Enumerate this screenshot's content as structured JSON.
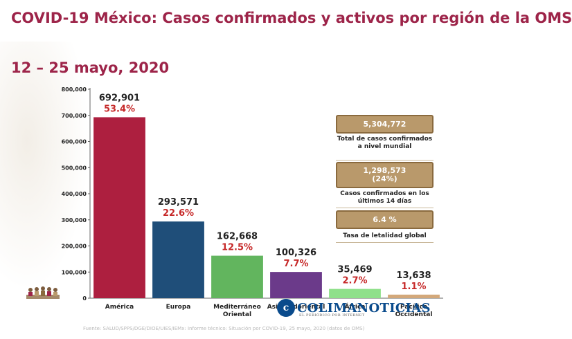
{
  "header": {
    "title": "COVID-19 México: Casos confirmados y activos por región de la OMS",
    "subtitle": "12 – 25 mayo, 2020"
  },
  "chart_data": {
    "type": "bar",
    "categories": [
      "América",
      "Europa",
      "Mediterráneo Oriental",
      "Asia Sudoriental",
      "África",
      "Pacífico Occidental"
    ],
    "category_lines": [
      [
        "América"
      ],
      [
        "Europa"
      ],
      [
        "Mediterráneo",
        "Oriental"
      ],
      [
        "Asia Sudoriental"
      ],
      [
        "África"
      ],
      [
        "Pacífico",
        "Occidental"
      ]
    ],
    "values": [
      692901,
      293571,
      162668,
      100326,
      35469,
      13638
    ],
    "value_labels": [
      "692,901",
      "293,571",
      "162,668",
      "100,326",
      "35,469",
      "13,638"
    ],
    "percent_labels": [
      "53.4%",
      "22.6%",
      "12.5%",
      "7.7%",
      "2.7%",
      "1.1%"
    ],
    "colors": [
      "#ad1f3f",
      "#1f4e79",
      "#62b55e",
      "#6b3a8a",
      "#8fe08a",
      "#d3a87a"
    ],
    "ylim": [
      0,
      800000
    ],
    "yticks": [
      0,
      100000,
      200000,
      300000,
      400000,
      500000,
      600000,
      700000,
      800000
    ],
    "ytick_labels": [
      "0",
      "100,000",
      "200,000",
      "300,000",
      "400,000",
      "500,000",
      "600,000",
      "700,000",
      "800,000"
    ],
    "grid": false,
    "legend": "none"
  },
  "stats": {
    "total_value": "5,304,772",
    "total_desc": "Total de casos confirmados a nivel mundial",
    "recent_value": "1,298,573",
    "recent_pct": "(24%)",
    "recent_desc": "Casos confirmados en los últimos 14 días",
    "lethality_value": "6.4 %",
    "lethality_desc": "Tasa de letalidad global"
  },
  "footer": {
    "source": "Fuente: SALUD/SPPS/DGE/DIOE/UIES/IEMx: Informe técnico: Situación por COVID-19, 25 mayo, 2020 (datos de OMS)"
  },
  "watermark": {
    "mark": "c",
    "name": "COLIMANOTICIAS",
    "tagline": "EL PERIÓDICO POR INTERNET"
  }
}
